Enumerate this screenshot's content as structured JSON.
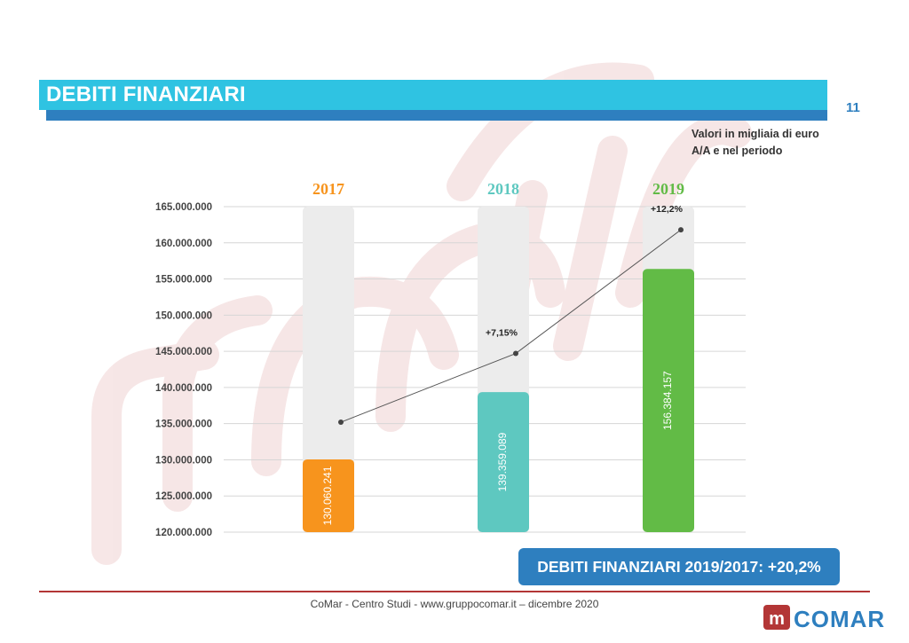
{
  "page": {
    "title": "DEBITI FINANZIARI",
    "number": "11",
    "units_line1": "Valori in migliaia di euro",
    "units_line2": "A/A e nel periodo",
    "summary": "DEBITI FINANZIARI 2019/2017: +20,2%",
    "footer": "CoMar - Centro Studi - www.gruppocomar.it – dicembre 2020",
    "logo_text": "COMAR",
    "logo_mark": "m"
  },
  "colors": {
    "accent": "#2fc3e2",
    "accent_dark": "#2e7fbf",
    "bar_2017": "#f7941d",
    "bar_2018": "#5ec8c0",
    "bar_2019": "#62bb46",
    "track": "#ececec",
    "footer_line": "#b33636",
    "watermark": "#f6e4e4"
  },
  "chart_data": {
    "type": "bar",
    "categories": [
      "2017",
      "2018",
      "2019"
    ],
    "values": [
      130060241,
      139359089,
      156384157
    ],
    "value_labels": [
      "130.060.241",
      "139.359.089",
      "156.384.157"
    ],
    "category_colors": [
      "#f7941d",
      "#5ec8c0",
      "#62bb46"
    ],
    "line_series": {
      "values": [
        135200000,
        144700000,
        161800000
      ],
      "labels": [
        "",
        "+7,15%",
        "+12,2%"
      ]
    },
    "ylim": [
      120000000,
      165000000
    ],
    "yticks": [
      120000000,
      125000000,
      130000000,
      135000000,
      140000000,
      145000000,
      150000000,
      155000000,
      160000000,
      165000000
    ],
    "ytick_labels": [
      "120.000.000",
      "125.000.000",
      "130.000.000",
      "135.000.000",
      "140.000.000",
      "145.000.000",
      "150.000.000",
      "155.000.000",
      "160.000.000",
      "165.000.000"
    ],
    "grid": true,
    "title": "",
    "xlabel": "",
    "ylabel": ""
  }
}
